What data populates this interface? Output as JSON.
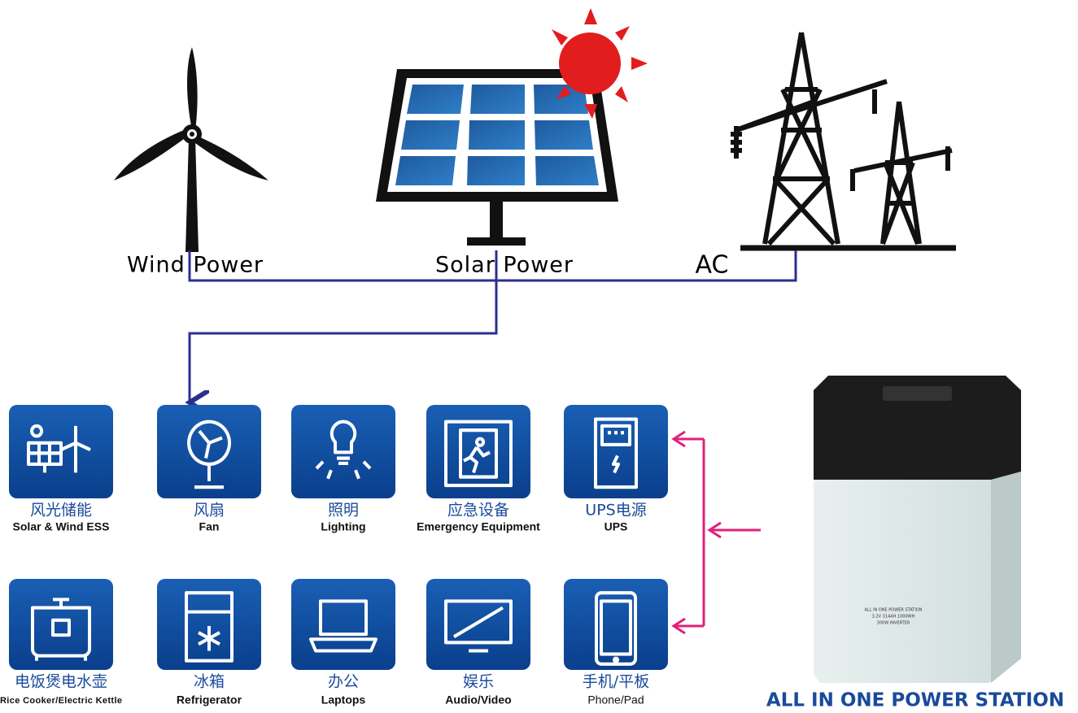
{
  "sources": [
    {
      "label": "Wind Power"
    },
    {
      "label": "Solar Power"
    },
    {
      "label": "AC"
    }
  ],
  "devices": [
    {
      "zh": "风光储能",
      "en": "Solar & Wind ESS"
    },
    {
      "zh": "风扇",
      "en": "Fan"
    },
    {
      "zh": "照明",
      "en": "Lighting"
    },
    {
      "zh": "应急设备",
      "en": "Emergency Equipment"
    },
    {
      "zh": "UPS电源",
      "en": "UPS"
    },
    {
      "zh": "电饭煲电水壶",
      "en": "Rice Cooker/Electric Kettle"
    },
    {
      "zh": "冰箱",
      "en": "Refrigerator"
    },
    {
      "zh": "办公",
      "en": "Laptops"
    },
    {
      "zh": "娱乐",
      "en": "Audio/Video"
    },
    {
      "zh": "手机/平板",
      "en": "Phone/Pad"
    }
  ],
  "product": {
    "label_lines": [
      "ALL IN ONE POWER STATION",
      "3.2V 314AH 1000WH",
      "300W INVERTER"
    ],
    "title": "ALL IN ONE POWER STATION"
  }
}
